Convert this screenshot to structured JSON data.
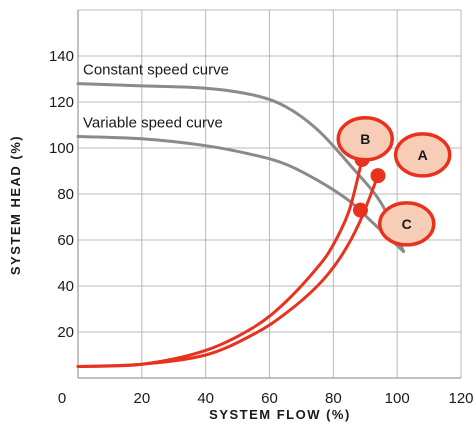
{
  "chart_data": {
    "type": "line",
    "xlabel": "SYSTEM FLOW (%)",
    "ylabel": "SYSTEM HEAD (%)",
    "xlim": [
      0,
      120
    ],
    "ylim": [
      0,
      160
    ],
    "x_ticks": [
      0,
      20,
      40,
      60,
      80,
      100,
      120
    ],
    "y_ticks": [
      20,
      40,
      60,
      80,
      100,
      120,
      140
    ],
    "grid": true,
    "series": [
      {
        "name": "Constant speed curve",
        "color": "#8a8a8a",
        "points": [
          [
            0,
            128
          ],
          [
            20,
            127
          ],
          [
            40,
            126
          ],
          [
            55,
            123
          ],
          [
            65,
            118
          ],
          [
            75,
            108
          ],
          [
            85,
            93
          ],
          [
            95,
            76
          ],
          [
            102,
            55
          ]
        ]
      },
      {
        "name": "Variable speed curve",
        "color": "#8a8a8a",
        "points": [
          [
            0,
            105
          ],
          [
            20,
            104
          ],
          [
            40,
            101
          ],
          [
            55,
            97
          ],
          [
            65,
            93
          ],
          [
            75,
            86
          ],
          [
            85,
            77
          ],
          [
            92,
            68
          ],
          [
            102,
            55
          ]
        ]
      },
      {
        "name": "",
        "color": "#e8321e",
        "points": [
          [
            0,
            5
          ],
          [
            20,
            6
          ],
          [
            40,
            12
          ],
          [
            55,
            22
          ],
          [
            65,
            33
          ],
          [
            75,
            48
          ],
          [
            80,
            58
          ],
          [
            85,
            73
          ],
          [
            89,
            95
          ]
        ]
      },
      {
        "name": "",
        "color": "#e8321e",
        "points": [
          [
            0,
            5
          ],
          [
            20,
            6
          ],
          [
            40,
            10
          ],
          [
            55,
            19
          ],
          [
            65,
            28
          ],
          [
            75,
            40
          ],
          [
            82,
            52
          ],
          [
            88,
            67
          ],
          [
            94,
            88
          ]
        ]
      }
    ],
    "markers": [
      {
        "x": 89,
        "y": 95,
        "color": "#e8321e"
      },
      {
        "x": 94,
        "y": 88,
        "color": "#e8321e"
      },
      {
        "x": 88.5,
        "y": 73,
        "color": "#e8321e"
      }
    ],
    "callouts": [
      {
        "label": "B",
        "x": 90,
        "y": 104
      },
      {
        "label": "A",
        "x": 108,
        "y": 97
      },
      {
        "label": "C",
        "x": 103,
        "y": 67
      }
    ],
    "callout_fill": "#f8cdb8",
    "callout_stroke": "#e8321e"
  }
}
